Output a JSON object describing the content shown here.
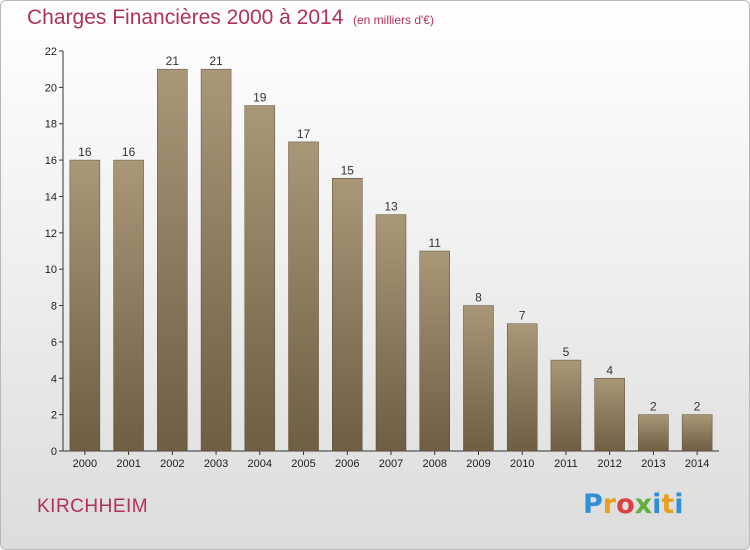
{
  "header": {
    "title": "Charges Financières 2000 à 2014",
    "subtitle": "(en milliers d'€)"
  },
  "footer": {
    "commune": "KIRCHHEIM",
    "logo_letters": [
      "P",
      "r",
      "o",
      "x",
      "i",
      "t",
      "i"
    ]
  },
  "colors": {
    "title": "#b03060",
    "bar_top": "#a89878",
    "bar_bottom": "#6e5e42",
    "axis": "#333333"
  },
  "chart_data": {
    "type": "bar",
    "categories": [
      "2000",
      "2001",
      "2002",
      "2003",
      "2004",
      "2005",
      "2006",
      "2007",
      "2008",
      "2009",
      "2010",
      "2011",
      "2012",
      "2013",
      "2014"
    ],
    "values": [
      16,
      16,
      21,
      21,
      19,
      17,
      15,
      13,
      11,
      8,
      7,
      5,
      4,
      2,
      2
    ],
    "title": "Charges Financières 2000 à 2014",
    "ylim": [
      0,
      22
    ],
    "yticks": [
      0,
      2,
      4,
      6,
      8,
      10,
      12,
      14,
      16,
      18,
      20,
      22
    ],
    "grid": false,
    "legend": "none"
  }
}
